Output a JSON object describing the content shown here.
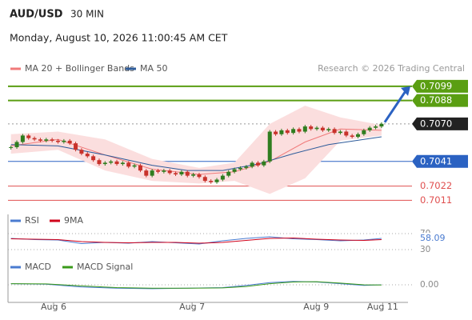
{
  "header": {
    "symbol": "AUD/USD",
    "interval": "30 MIN",
    "timestamp": "Monday, August 10, 2026 11:00:45 AM CET"
  },
  "chart_data": [
    {
      "type": "candlestick",
      "source": "Research © 2026 Trading Central",
      "up_color": "#2f7d1f",
      "down_color": "#c8322b",
      "values": [
        0.7052,
        0.7056,
        0.7061,
        0.7059,
        0.7058,
        0.7057,
        0.7058,
        0.7057,
        0.7056,
        0.7057,
        0.7055,
        0.705,
        0.7047,
        0.7045,
        0.7042,
        0.7039,
        0.704,
        0.7041,
        0.7039,
        0.704,
        0.7037,
        0.7038,
        0.7034,
        0.703,
        0.7034,
        0.7033,
        0.7034,
        0.7032,
        0.7031,
        0.7033,
        0.703,
        0.7031,
        0.7029,
        0.7026,
        0.7025,
        0.7027,
        0.703,
        0.7033,
        0.7035,
        0.7036,
        0.7037,
        0.704,
        0.7038,
        0.7041,
        0.7064,
        0.7062,
        0.7065,
        0.7063,
        0.7066,
        0.7064,
        0.7068,
        0.7066,
        0.7067,
        0.7065,
        0.7066,
        0.7063,
        0.7064,
        0.7061,
        0.706,
        0.7062,
        0.7065,
        0.7067,
        0.7068,
        0.707
      ],
      "series": [
        {
          "name": "MA 20 + Bollinger Bands",
          "color": "#f07a7a",
          "band_color": "#fbdede",
          "x": [
            0,
            8,
            16,
            24,
            32,
            38,
            44,
            50,
            56,
            63
          ],
          "values": [
            0.7053,
            0.7058,
            0.7046,
            0.7035,
            0.7031,
            0.7033,
            0.7041,
            0.7056,
            0.7066,
            0.7065
          ],
          "upper": [
            0.7062,
            0.7064,
            0.7058,
            0.7043,
            0.7036,
            0.704,
            0.707,
            0.7084,
            0.7075,
            0.7069
          ],
          "lower": [
            0.7047,
            0.705,
            0.7034,
            0.7026,
            0.7024,
            0.7026,
            0.7016,
            0.7028,
            0.7057,
            0.7061
          ]
        },
        {
          "name": "MA 50",
          "color": "#2d5b9a",
          "x": [
            0,
            8,
            16,
            24,
            30,
            36,
            42,
            48,
            54,
            63
          ],
          "values": [
            0.7054,
            0.7053,
            0.7046,
            0.7038,
            0.7034,
            0.7034,
            0.7039,
            0.7047,
            0.7054,
            0.706
          ]
        }
      ],
      "levels": [
        {
          "value": 0.7099,
          "label": "0.7099",
          "color": "#5a9e12",
          "style": "tag",
          "line": "solid"
        },
        {
          "value": 0.7088,
          "label": "0.7088",
          "color": "#5a9e12",
          "style": "tag",
          "line": "solid"
        },
        {
          "value": 0.707,
          "label": "0.7070",
          "color": "#222222",
          "style": "tag",
          "line": "dotted"
        },
        {
          "value": 0.7041,
          "label": "0.7041",
          "color": "#2b62c2",
          "style": "tag",
          "line": "solid"
        },
        {
          "value": 0.7022,
          "label": "0.7022",
          "color": "#e05050",
          "style": "text",
          "line": "solid"
        },
        {
          "value": 0.7011,
          "label": "0.7011",
          "color": "#e05050",
          "style": "text",
          "line": "solid"
        }
      ],
      "xlim": [
        -0.5,
        67.5
      ],
      "ylim": [
        0.7002,
        0.711
      ]
    },
    {
      "type": "line",
      "series": [
        {
          "name": "RSI",
          "color": "#4a7bd0",
          "x": [
            0,
            4,
            8,
            12,
            16,
            20,
            24,
            28,
            32,
            36,
            40,
            44,
            48,
            52,
            56,
            60,
            63
          ],
          "values": [
            58,
            55,
            54,
            45,
            48,
            46,
            50,
            47,
            44,
            52,
            58,
            62,
            57,
            55,
            52,
            54,
            58.09
          ]
        },
        {
          "name": "9MA",
          "color": "#d0021b",
          "x": [
            0,
            4,
            8,
            12,
            16,
            20,
            24,
            28,
            32,
            36,
            40,
            44,
            48,
            52,
            56,
            60,
            63
          ],
          "values": [
            57,
            56,
            55,
            50,
            48,
            47,
            48,
            48,
            46,
            48,
            53,
            58,
            59,
            56,
            54,
            53,
            55
          ]
        }
      ],
      "yticks": [
        70,
        30
      ],
      "current_value": 58.09,
      "xlim": [
        -0.5,
        67.5
      ],
      "ylim": [
        0,
        100
      ]
    },
    {
      "type": "line",
      "series": [
        {
          "name": "MACD",
          "color": "#4a7bd0",
          "x": [
            0,
            6,
            12,
            18,
            24,
            30,
            36,
            40,
            44,
            48,
            52,
            56,
            60,
            63
          ],
          "values": [
            0.0001,
            5e-05,
            -0.0002,
            -0.0003,
            -0.00035,
            -0.0003,
            -0.00025,
            -5e-05,
            0.0002,
            0.0003,
            0.00025,
            0.0001,
            -5e-05,
            0
          ]
        },
        {
          "name": "MACD Signal",
          "color": "#3a9a1a",
          "x": [
            0,
            6,
            12,
            18,
            24,
            30,
            36,
            40,
            44,
            48,
            52,
            56,
            60,
            63
          ],
          "values": [
            0.0001,
            8e-05,
            -0.0001,
            -0.00025,
            -0.0003,
            -0.0003,
            -0.00028,
            -0.00015,
            0.0001,
            0.00025,
            0.00028,
            0.00015,
            0,
            -2e-05
          ]
        }
      ],
      "yticks": [
        {
          "value": 0,
          "label": "0.00"
        }
      ],
      "xlim": [
        -0.5,
        67.5
      ],
      "ylim": [
        -0.0015,
        0.0015
      ],
      "xticks": [
        {
          "value": 7.25,
          "label": "Aug 6"
        },
        {
          "value": 30.8,
          "label": "Aug 7"
        },
        {
          "value": 51.9,
          "label": "Aug 9"
        },
        {
          "value": 63.2,
          "label": "Aug 11"
        }
      ]
    }
  ]
}
